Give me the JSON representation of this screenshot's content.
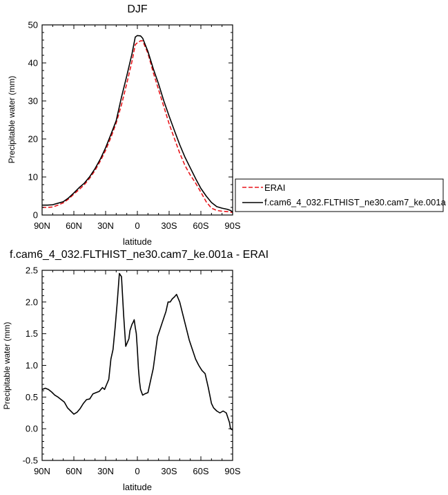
{
  "chart_data": [
    {
      "type": "line",
      "title": "DJF",
      "xlabel": "latitude",
      "ylabel": "Precipitable water (mm)",
      "xlim": [
        -90,
        90
      ],
      "ylim": [
        0,
        50
      ],
      "x_ticks": [
        -90,
        -60,
        -30,
        0,
        30,
        60,
        90
      ],
      "x_tick_labels": [
        "90N",
        "60N",
        "30N",
        "0",
        "30S",
        "60S",
        "90S"
      ],
      "y_ticks": [
        0,
        10,
        20,
        30,
        40,
        50
      ],
      "y_tick_labels": [
        "0",
        "10",
        "20",
        "30",
        "40",
        "50"
      ],
      "grid": false,
      "legend_position": "right",
      "series": [
        {
          "name": "ERAI",
          "color": "#e8141a",
          "dash": "dashed",
          "x": [
            -90,
            -85,
            -80,
            -75,
            -70,
            -65,
            -60,
            -55,
            -50,
            -45,
            -40,
            -35,
            -30,
            -25,
            -20,
            -15,
            -10,
            -5,
            -2,
            0,
            3,
            5,
            10,
            15,
            20,
            25,
            30,
            35,
            40,
            45,
            50,
            55,
            60,
            65,
            70,
            75,
            80,
            85,
            88,
            90
          ],
          "y": [
            2.0,
            2.0,
            2.1,
            2.6,
            3.2,
            4.2,
            5.5,
            6.7,
            8.0,
            9.7,
            11.7,
            14.2,
            17.0,
            20.4,
            24.2,
            29.0,
            34.6,
            40.5,
            44.8,
            45.3,
            45.8,
            45.8,
            42.5,
            37.5,
            33.0,
            28.5,
            24.0,
            20.1,
            16.3,
            13.0,
            10.5,
            8.4,
            6.0,
            3.5,
            1.8,
            1.2,
            1.0,
            0.9,
            0.8,
            0.6
          ]
        },
        {
          "name": "f.cam6_4_032.FLTHIST_ne30.cam7_ke.001a",
          "color": "#000000",
          "dash": "solid",
          "x": [
            -90,
            -85,
            -80,
            -75,
            -70,
            -65,
            -60,
            -55,
            -50,
            -45,
            -40,
            -35,
            -30,
            -25,
            -20,
            -15,
            -10,
            -5,
            -2,
            0,
            3,
            5,
            10,
            15,
            20,
            25,
            30,
            35,
            40,
            45,
            50,
            55,
            60,
            65,
            70,
            75,
            80,
            85,
            88,
            90
          ],
          "y": [
            2.6,
            2.6,
            2.7,
            3.1,
            3.5,
            4.5,
            5.8,
            7.2,
            8.4,
            10.1,
            12.2,
            14.7,
            17.7,
            21.2,
            24.8,
            31.0,
            36.6,
            42.5,
            46.8,
            47.2,
            47.1,
            46.5,
            43.0,
            38.5,
            34.5,
            30.0,
            26.0,
            22.2,
            18.5,
            15.2,
            12.4,
            9.6,
            7.0,
            5.0,
            3.3,
            2.2,
            1.8,
            1.5,
            1.2,
            0.8
          ]
        }
      ]
    },
    {
      "type": "line",
      "title": "f.cam6_4_032.FLTHIST_ne30.cam7_ke.001a - ERAI",
      "xlabel": "latitude",
      "ylabel": "Precipitable water (mm)",
      "xlim": [
        -90,
        90
      ],
      "ylim": [
        -0.5,
        2.5
      ],
      "x_ticks": [
        -90,
        -60,
        -30,
        0,
        30,
        60,
        90
      ],
      "x_tick_labels": [
        "90N",
        "60N",
        "30N",
        "0",
        "30S",
        "60S",
        "90S"
      ],
      "y_ticks": [
        -0.5,
        0.0,
        0.5,
        1.0,
        1.5,
        2.0,
        2.5
      ],
      "y_tick_labels": [
        "-0.5",
        "0.0",
        "0.5",
        "1.0",
        "1.5",
        "2.0",
        "2.5"
      ],
      "grid": false,
      "series": [
        {
          "color": "#000000",
          "dash": "solid",
          "x": [
            -90,
            -87,
            -84,
            -81,
            -78,
            -75,
            -72,
            -69,
            -66,
            -63,
            -60,
            -57,
            -54,
            -51,
            -48,
            -45,
            -42,
            -39,
            -36,
            -33,
            -31,
            -29,
            -27,
            -25,
            -23,
            -21,
            -19,
            -17,
            -15,
            -13,
            -11,
            -9,
            -8,
            -7,
            -6,
            -5,
            -4,
            -3,
            -2,
            -1,
            0,
            1,
            2,
            3,
            5,
            7,
            10,
            13,
            15,
            17,
            19,
            21,
            23,
            25,
            27,
            29,
            31,
            33,
            35,
            37,
            40,
            43,
            46,
            49,
            52,
            55,
            58,
            61,
            64,
            67,
            70,
            72,
            75,
            78,
            81,
            84,
            87,
            88,
            90
          ],
          "y": [
            0.62,
            0.64,
            0.62,
            0.58,
            0.53,
            0.5,
            0.46,
            0.42,
            0.33,
            0.28,
            0.23,
            0.26,
            0.32,
            0.4,
            0.46,
            0.47,
            0.55,
            0.57,
            0.59,
            0.65,
            0.62,
            0.7,
            0.78,
            1.1,
            1.25,
            1.6,
            2.0,
            2.45,
            2.4,
            1.8,
            1.3,
            1.38,
            1.42,
            1.55,
            1.6,
            1.65,
            1.68,
            1.72,
            1.6,
            1.5,
            1.25,
            0.95,
            0.75,
            0.62,
            0.53,
            0.55,
            0.57,
            0.8,
            0.95,
            1.2,
            1.45,
            1.55,
            1.65,
            1.75,
            1.85,
            2.0,
            2.0,
            2.05,
            2.08,
            2.12,
            2.0,
            1.8,
            1.6,
            1.4,
            1.25,
            1.1,
            1.0,
            0.92,
            0.87,
            0.65,
            0.4,
            0.33,
            0.28,
            0.25,
            0.28,
            0.25,
            0.1,
            0.0,
            -0.02
          ]
        }
      ]
    }
  ]
}
